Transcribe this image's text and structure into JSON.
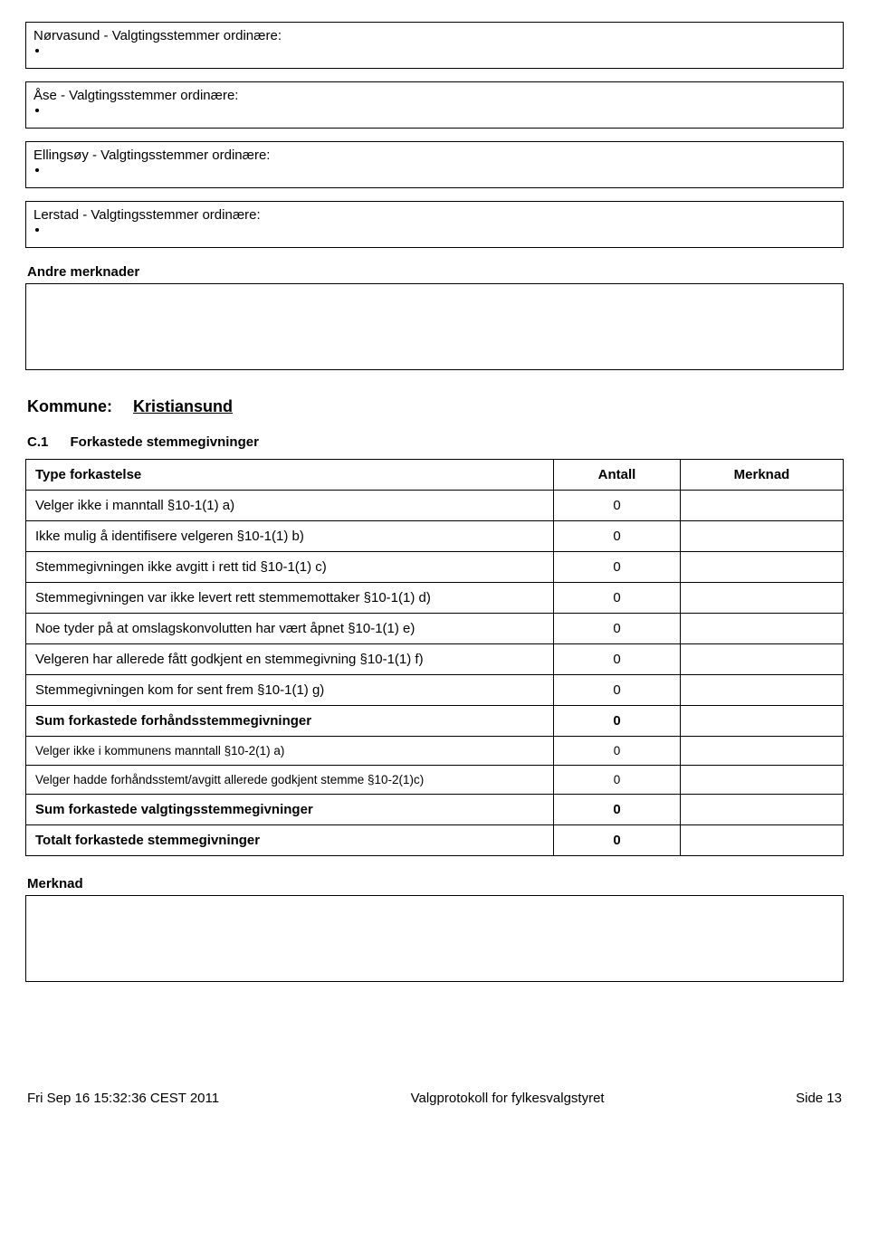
{
  "header_boxes": [
    "Nørvasund - Valgtingsstemmer ordinære:",
    "Åse - Valgtingsstemmer ordinære:",
    "Ellingsøy - Valgtingsstemmer ordinære:",
    "Lerstad - Valgtingsstemmer ordinære:"
  ],
  "andre_merknader_label": "Andre merknader",
  "kommune_label": "Kommune:",
  "kommune_value": "Kristiansund",
  "c1_num": "C.1",
  "c1_title": "Forkastede stemmegivninger",
  "columns": {
    "type": "Type forkastelse",
    "antall": "Antall",
    "merknad": "Merknad"
  },
  "rows": [
    {
      "label": "Velger ikke i manntall §10-1(1) a)",
      "antall": "0",
      "bold": false,
      "small": false
    },
    {
      "label": "Ikke mulig å identifisere velgeren §10-1(1) b)",
      "antall": "0",
      "bold": false,
      "small": false
    },
    {
      "label": "Stemmegivningen ikke avgitt i rett tid §10-1(1) c)",
      "antall": "0",
      "bold": false,
      "small": false
    },
    {
      "label": "Stemmegivningen var ikke levert rett stemmemottaker §10-1(1) d)",
      "antall": "0",
      "bold": false,
      "small": false
    },
    {
      "label": "Noe tyder på at omslagskonvolutten har vært åpnet §10-1(1) e)",
      "antall": "0",
      "bold": false,
      "small": false
    },
    {
      "label": "Velgeren har allerede fått godkjent en stemmegivning §10-1(1) f)",
      "antall": "0",
      "bold": false,
      "small": false
    },
    {
      "label": "Stemmegivningen kom for sent frem §10-1(1) g)",
      "antall": "0",
      "bold": false,
      "small": false
    },
    {
      "label": "Sum forkastede forhåndsstemmegivninger",
      "antall": "0",
      "bold": true,
      "small": false
    },
    {
      "label": "Velger ikke i kommunens manntall §10-2(1) a)",
      "antall": "0",
      "bold": false,
      "small": true
    },
    {
      "label": "Velger hadde forhåndsstemt/avgitt allerede godkjent stemme §10-2(1)c)",
      "antall": "0",
      "bold": false,
      "small": true
    },
    {
      "label": "Sum forkastede valgtingsstemmegivninger",
      "antall": "0",
      "bold": true,
      "small": false
    },
    {
      "label": "Totalt forkastede stemmegivninger",
      "antall": "0",
      "bold": true,
      "small": false
    }
  ],
  "merknad_label": "Merknad",
  "footer": {
    "left": "Fri Sep 16 15:32:36 CEST 2011",
    "center": "Valgprotokoll for fylkesvalgstyret",
    "right": "Side 13"
  }
}
